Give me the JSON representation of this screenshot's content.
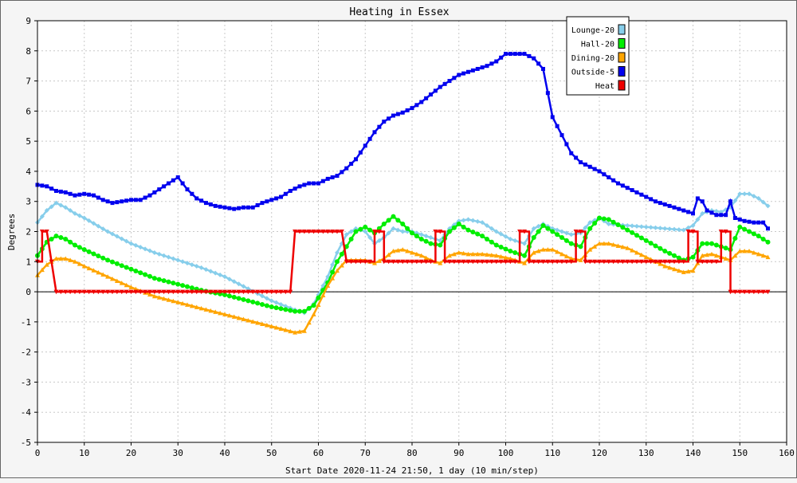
{
  "chart_data": {
    "type": "line",
    "title": "Heating in Essex",
    "xlabel": "Start Date 2020-11-24 21:50, 1 day (10 min/step)",
    "ylabel": "Degrees",
    "xlim": [
      0,
      160
    ],
    "ylim": [
      -5,
      9
    ],
    "x_ticks": [
      0,
      10,
      20,
      30,
      40,
      50,
      60,
      70,
      80,
      90,
      100,
      110,
      120,
      130,
      140,
      150,
      160
    ],
    "y_ticks": [
      -5,
      -4,
      -3,
      -2,
      -1,
      0,
      1,
      2,
      3,
      4,
      5,
      6,
      7,
      8,
      9
    ],
    "grid": true,
    "legend_position": "top-right",
    "series": [
      {
        "name": "Lounge-20",
        "color": "#87ceeb",
        "marker": "diamond",
        "points": [
          [
            0,
            2.3
          ],
          [
            2,
            2.7
          ],
          [
            4,
            2.95
          ],
          [
            6,
            2.8
          ],
          [
            8,
            2.6
          ],
          [
            10,
            2.45
          ],
          [
            15,
            2.0
          ],
          [
            20,
            1.6
          ],
          [
            25,
            1.3
          ],
          [
            30,
            1.05
          ],
          [
            35,
            0.8
          ],
          [
            40,
            0.5
          ],
          [
            45,
            0.1
          ],
          [
            50,
            -0.3
          ],
          [
            55,
            -0.6
          ],
          [
            57,
            -0.7
          ],
          [
            59,
            -0.4
          ],
          [
            62,
            0.5
          ],
          [
            64,
            1.3
          ],
          [
            66,
            1.9
          ],
          [
            68,
            2.1
          ],
          [
            70,
            2.0
          ],
          [
            72,
            1.6
          ],
          [
            74,
            1.8
          ],
          [
            76,
            2.1
          ],
          [
            78,
            2.0
          ],
          [
            80,
            2.0
          ],
          [
            82,
            1.9
          ],
          [
            84,
            1.8
          ],
          [
            86,
            1.7
          ],
          [
            88,
            2.1
          ],
          [
            90,
            2.35
          ],
          [
            92,
            2.4
          ],
          [
            95,
            2.3
          ],
          [
            98,
            2.0
          ],
          [
            101,
            1.75
          ],
          [
            104,
            1.6
          ],
          [
            106,
            2.1
          ],
          [
            108,
            2.25
          ],
          [
            110,
            2.1
          ],
          [
            112,
            2.0
          ],
          [
            114,
            1.9
          ],
          [
            116,
            1.95
          ],
          [
            118,
            2.3
          ],
          [
            120,
            2.45
          ],
          [
            122,
            2.25
          ],
          [
            126,
            2.2
          ],
          [
            130,
            2.15
          ],
          [
            134,
            2.1
          ],
          [
            138,
            2.05
          ],
          [
            140,
            2.2
          ],
          [
            142,
            2.6
          ],
          [
            144,
            2.7
          ],
          [
            146,
            2.65
          ],
          [
            148,
            2.8
          ],
          [
            150,
            3.25
          ],
          [
            152,
            3.25
          ],
          [
            154,
            3.1
          ],
          [
            156,
            2.85
          ]
        ]
      },
      {
        "name": "Hall-20",
        "color": "#00ee00",
        "marker": "circle",
        "points": [
          [
            0,
            1.2
          ],
          [
            2,
            1.65
          ],
          [
            4,
            1.85
          ],
          [
            6,
            1.75
          ],
          [
            8,
            1.55
          ],
          [
            10,
            1.4
          ],
          [
            15,
            1.05
          ],
          [
            20,
            0.75
          ],
          [
            25,
            0.45
          ],
          [
            30,
            0.25
          ],
          [
            35,
            0.05
          ],
          [
            40,
            -0.1
          ],
          [
            45,
            -0.3
          ],
          [
            50,
            -0.5
          ],
          [
            55,
            -0.65
          ],
          [
            57,
            -0.65
          ],
          [
            59,
            -0.45
          ],
          [
            62,
            0.3
          ],
          [
            64,
            1.0
          ],
          [
            66,
            1.5
          ],
          [
            68,
            2.0
          ],
          [
            70,
            2.15
          ],
          [
            72,
            1.95
          ],
          [
            74,
            2.25
          ],
          [
            76,
            2.5
          ],
          [
            78,
            2.25
          ],
          [
            80,
            1.95
          ],
          [
            82,
            1.75
          ],
          [
            84,
            1.6
          ],
          [
            86,
            1.55
          ],
          [
            88,
            2.0
          ],
          [
            90,
            2.25
          ],
          [
            92,
            2.05
          ],
          [
            95,
            1.85
          ],
          [
            98,
            1.55
          ],
          [
            101,
            1.35
          ],
          [
            104,
            1.2
          ],
          [
            106,
            1.8
          ],
          [
            108,
            2.2
          ],
          [
            110,
            2.0
          ],
          [
            112,
            1.8
          ],
          [
            114,
            1.6
          ],
          [
            116,
            1.5
          ],
          [
            118,
            2.1
          ],
          [
            120,
            2.45
          ],
          [
            122,
            2.4
          ],
          [
            126,
            2.05
          ],
          [
            130,
            1.7
          ],
          [
            134,
            1.35
          ],
          [
            138,
            1.05
          ],
          [
            140,
            1.15
          ],
          [
            142,
            1.6
          ],
          [
            144,
            1.6
          ],
          [
            146,
            1.5
          ],
          [
            148,
            1.4
          ],
          [
            150,
            2.15
          ],
          [
            152,
            2.0
          ],
          [
            154,
            1.85
          ],
          [
            156,
            1.65
          ]
        ]
      },
      {
        "name": "Dining-20",
        "color": "#ffa500",
        "marker": "triangle",
        "points": [
          [
            0,
            0.55
          ],
          [
            2,
            0.9
          ],
          [
            4,
            1.1
          ],
          [
            6,
            1.1
          ],
          [
            8,
            1.0
          ],
          [
            10,
            0.85
          ],
          [
            15,
            0.5
          ],
          [
            20,
            0.15
          ],
          [
            25,
            -0.15
          ],
          [
            30,
            -0.35
          ],
          [
            35,
            -0.55
          ],
          [
            40,
            -0.75
          ],
          [
            45,
            -0.95
          ],
          [
            50,
            -1.15
          ],
          [
            55,
            -1.35
          ],
          [
            57,
            -1.3
          ],
          [
            59,
            -0.75
          ],
          [
            62,
            0.2
          ],
          [
            64,
            0.7
          ],
          [
            66,
            1.05
          ],
          [
            68,
            1.05
          ],
          [
            70,
            1.05
          ],
          [
            72,
            0.95
          ],
          [
            74,
            1.1
          ],
          [
            76,
            1.35
          ],
          [
            78,
            1.4
          ],
          [
            80,
            1.3
          ],
          [
            82,
            1.2
          ],
          [
            84,
            1.05
          ],
          [
            86,
            0.95
          ],
          [
            88,
            1.2
          ],
          [
            90,
            1.3
          ],
          [
            92,
            1.25
          ],
          [
            95,
            1.25
          ],
          [
            98,
            1.2
          ],
          [
            101,
            1.1
          ],
          [
            104,
            0.95
          ],
          [
            106,
            1.3
          ],
          [
            108,
            1.4
          ],
          [
            110,
            1.4
          ],
          [
            112,
            1.25
          ],
          [
            114,
            1.1
          ],
          [
            116,
            1.05
          ],
          [
            118,
            1.4
          ],
          [
            120,
            1.6
          ],
          [
            122,
            1.6
          ],
          [
            126,
            1.45
          ],
          [
            130,
            1.15
          ],
          [
            134,
            0.85
          ],
          [
            138,
            0.65
          ],
          [
            140,
            0.7
          ],
          [
            142,
            1.2
          ],
          [
            144,
            1.25
          ],
          [
            146,
            1.15
          ],
          [
            148,
            1.05
          ],
          [
            150,
            1.35
          ],
          [
            152,
            1.35
          ],
          [
            154,
            1.25
          ],
          [
            156,
            1.15
          ]
        ]
      },
      {
        "name": "Outside-5",
        "color": "#0000ee",
        "marker": "square",
        "points": [
          [
            0,
            3.55
          ],
          [
            2,
            3.5
          ],
          [
            4,
            3.35
          ],
          [
            6,
            3.3
          ],
          [
            8,
            3.2
          ],
          [
            10,
            3.25
          ],
          [
            12,
            3.2
          ],
          [
            14,
            3.05
          ],
          [
            16,
            2.95
          ],
          [
            18,
            3.0
          ],
          [
            20,
            3.05
          ],
          [
            22,
            3.05
          ],
          [
            24,
            3.2
          ],
          [
            26,
            3.4
          ],
          [
            28,
            3.6
          ],
          [
            30,
            3.8
          ],
          [
            32,
            3.4
          ],
          [
            34,
            3.1
          ],
          [
            36,
            2.95
          ],
          [
            38,
            2.85
          ],
          [
            40,
            2.8
          ],
          [
            42,
            2.75
          ],
          [
            44,
            2.8
          ],
          [
            46,
            2.8
          ],
          [
            48,
            2.95
          ],
          [
            50,
            3.05
          ],
          [
            52,
            3.15
          ],
          [
            54,
            3.35
          ],
          [
            56,
            3.5
          ],
          [
            58,
            3.6
          ],
          [
            60,
            3.6
          ],
          [
            62,
            3.75
          ],
          [
            64,
            3.85
          ],
          [
            66,
            4.1
          ],
          [
            68,
            4.4
          ],
          [
            70,
            4.85
          ],
          [
            72,
            5.3
          ],
          [
            74,
            5.65
          ],
          [
            76,
            5.85
          ],
          [
            78,
            5.95
          ],
          [
            80,
            6.1
          ],
          [
            82,
            6.3
          ],
          [
            84,
            6.55
          ],
          [
            86,
            6.8
          ],
          [
            88,
            7.0
          ],
          [
            90,
            7.2
          ],
          [
            92,
            7.3
          ],
          [
            94,
            7.4
          ],
          [
            96,
            7.5
          ],
          [
            98,
            7.65
          ],
          [
            100,
            7.9
          ],
          [
            102,
            7.9
          ],
          [
            104,
            7.9
          ],
          [
            106,
            7.75
          ],
          [
            108,
            7.4
          ],
          [
            109,
            6.6
          ],
          [
            110,
            5.8
          ],
          [
            112,
            5.2
          ],
          [
            114,
            4.6
          ],
          [
            116,
            4.3
          ],
          [
            118,
            4.15
          ],
          [
            120,
            4.0
          ],
          [
            122,
            3.8
          ],
          [
            124,
            3.6
          ],
          [
            126,
            3.45
          ],
          [
            128,
            3.3
          ],
          [
            130,
            3.15
          ],
          [
            132,
            3.0
          ],
          [
            134,
            2.9
          ],
          [
            136,
            2.8
          ],
          [
            138,
            2.7
          ],
          [
            140,
            2.6
          ],
          [
            141,
            3.1
          ],
          [
            142,
            3.0
          ],
          [
            143,
            2.7
          ],
          [
            145,
            2.55
          ],
          [
            147,
            2.55
          ],
          [
            148,
            3.0
          ],
          [
            149,
            2.45
          ],
          [
            151,
            2.35
          ],
          [
            153,
            2.3
          ],
          [
            155,
            2.3
          ],
          [
            156,
            2.1
          ]
        ]
      },
      {
        "name": "Heat",
        "color": "#ee0000",
        "marker": "triangle-down",
        "points": [
          [
            0,
            1.0
          ],
          [
            1,
            1.0
          ],
          [
            1,
            2.0
          ],
          [
            2,
            2.0
          ],
          [
            3,
            1.0
          ],
          [
            4,
            0
          ],
          [
            54,
            0
          ],
          [
            55,
            2.0
          ],
          [
            65,
            2.0
          ],
          [
            66,
            1.0
          ],
          [
            72,
            1.0
          ],
          [
            72,
            2.0
          ],
          [
            74,
            2.0
          ],
          [
            74,
            1.0
          ],
          [
            85,
            1.0
          ],
          [
            85,
            2.0
          ],
          [
            87,
            2.0
          ],
          [
            87,
            1.0
          ],
          [
            103,
            1.0
          ],
          [
            103,
            2.0
          ],
          [
            105,
            2.0
          ],
          [
            105,
            1.0
          ],
          [
            115,
            1.0
          ],
          [
            115,
            2.0
          ],
          [
            117,
            2.0
          ],
          [
            117,
            1.0
          ],
          [
            139,
            1.0
          ],
          [
            139,
            2.0
          ],
          [
            141,
            2.0
          ],
          [
            141,
            1.0
          ],
          [
            146,
            1.0
          ],
          [
            146,
            2.0
          ],
          [
            148,
            2.0
          ],
          [
            148,
            0
          ],
          [
            156,
            0
          ]
        ]
      }
    ]
  }
}
